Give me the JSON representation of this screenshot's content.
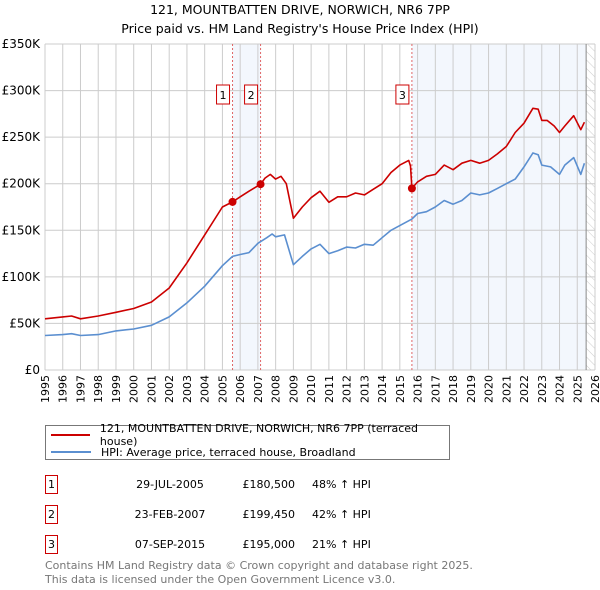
{
  "header": {
    "title": "121, MOUNTBATTEN DRIVE, NORWICH, NR6 7PP",
    "subtitle": "Price paid vs. HM Land Registry's House Price Index (HPI)"
  },
  "chart_data": {
    "type": "line",
    "title": "121, MOUNTBATTEN DRIVE, NORWICH, NR6 7PP — Price paid vs. HM Land Registry's House Price Index (HPI)",
    "xlim": [
      1995,
      2026
    ],
    "ylim": [
      0,
      350000
    ],
    "x_ticks": [
      "1995",
      "1996",
      "1997",
      "1998",
      "1999",
      "2000",
      "2001",
      "2002",
      "2003",
      "2004",
      "2005",
      "2006",
      "2007",
      "2008",
      "2009",
      "2010",
      "2011",
      "2012",
      "2013",
      "2014",
      "2015",
      "2016",
      "2017",
      "2018",
      "2019",
      "2020",
      "2021",
      "2022",
      "2023",
      "2024",
      "2025",
      "2026"
    ],
    "y_ticks": [
      {
        "v": 0,
        "label": "£0"
      },
      {
        "v": 50000,
        "label": "£50K"
      },
      {
        "v": 100000,
        "label": "£100K"
      },
      {
        "v": 150000,
        "label": "£150K"
      },
      {
        "v": 200000,
        "label": "£200K"
      },
      {
        "v": 250000,
        "label": "£250K"
      },
      {
        "v": 300000,
        "label": "£300K"
      },
      {
        "v": 350000,
        "label": "£350K"
      }
    ],
    "grid": true,
    "shaded_ranges": [
      [
        2005.57,
        2007.15
      ],
      [
        2015.68,
        2025.5
      ]
    ],
    "hatched_from": 2025.5,
    "series": [
      {
        "name": "121, MOUNTBATTEN DRIVE, NORWICH, NR6 7PP (terraced house)",
        "color": "#cc0000",
        "x": [
          1995,
          1996,
          1996.5,
          1997,
          1998,
          1999,
          2000,
          2001,
          2002,
          2003,
          2004,
          2005,
          2005.57,
          2006,
          2006.5,
          2007.15,
          2007.4,
          2007.7,
          2008,
          2008.3,
          2008.6,
          2009,
          2009.5,
          2010,
          2010.5,
          2011,
          2011.5,
          2012,
          2012.5,
          2013,
          2013.5,
          2014,
          2014.5,
          2015,
          2015.5,
          2015.6,
          2015.68,
          2016,
          2016.5,
          2017,
          2017.5,
          2018,
          2018.5,
          2019,
          2019.5,
          2020,
          2020.5,
          2021,
          2021.5,
          2022,
          2022.5,
          2022.8,
          2023,
          2023.3,
          2023.7,
          2024,
          2024.3,
          2024.8,
          2025.2,
          2025.4
        ],
        "y": [
          55000,
          57000,
          58000,
          55000,
          58000,
          62000,
          66000,
          73000,
          88000,
          115000,
          145000,
          175000,
          180500,
          186000,
          192000,
          199450,
          206000,
          210000,
          205000,
          208000,
          200000,
          163000,
          175000,
          185000,
          192000,
          180000,
          186000,
          186000,
          190000,
          188000,
          194000,
          200000,
          212000,
          220000,
          225000,
          219000,
          195000,
          202000,
          208000,
          210000,
          220000,
          215000,
          222000,
          225000,
          222000,
          225000,
          232000,
          240000,
          255000,
          265000,
          281000,
          280000,
          268000,
          268000,
          262000,
          255000,
          262000,
          273000,
          258000,
          266000
        ]
      },
      {
        "name": "HPI: Average price, terraced house, Broadland",
        "color": "#5b8fd0",
        "x": [
          1995,
          1996,
          1996.5,
          1997,
          1998,
          1999,
          2000,
          2001,
          2002,
          2003,
          2004,
          2005,
          2005.57,
          2006,
          2006.5,
          2007,
          2007.5,
          2007.8,
          2008,
          2008.5,
          2009,
          2009.5,
          2010,
          2010.5,
          2011,
          2011.5,
          2012,
          2012.5,
          2013,
          2013.5,
          2014,
          2014.5,
          2015,
          2015.68,
          2016,
          2016.5,
          2017,
          2017.5,
          2018,
          2018.5,
          2019,
          2019.5,
          2020,
          2020.5,
          2021,
          2021.5,
          2022,
          2022.5,
          2022.8,
          2023,
          2023.5,
          2024,
          2024.3,
          2024.8,
          2025.2,
          2025.4
        ],
        "y": [
          37000,
          38000,
          39000,
          37000,
          38000,
          42000,
          44000,
          48000,
          57000,
          72000,
          90000,
          112000,
          122000,
          124000,
          126000,
          136000,
          142000,
          146000,
          143000,
          145000,
          113000,
          122000,
          130000,
          135000,
          125000,
          128000,
          132000,
          131000,
          135000,
          134000,
          142000,
          150000,
          155000,
          162000,
          168000,
          170000,
          175000,
          182000,
          178000,
          182000,
          190000,
          188000,
          190000,
          195000,
          200000,
          205000,
          218000,
          233000,
          231000,
          220000,
          218000,
          210000,
          220000,
          228000,
          210000,
          222000
        ]
      }
    ],
    "sales": [
      {
        "id": "1",
        "date": "29-JUL-2005",
        "x": 2005.57,
        "price": 180500,
        "price_label": "£180,500",
        "pct": "48% ↑ HPI"
      },
      {
        "id": "2",
        "date": "23-FEB-2007",
        "x": 2007.15,
        "price": 199450,
        "price_label": "£199,450",
        "pct": "42% ↑ HPI"
      },
      {
        "id": "3",
        "date": "07-SEP-2015",
        "x": 2015.68,
        "price": 195000,
        "price_label": "£195,000",
        "pct": "21% ↑ HPI"
      }
    ]
  },
  "footer": {
    "line1": "Contains HM Land Registry data © Crown copyright and database right 2025.",
    "line2": "This data is licensed under the Open Government Licence v3.0."
  }
}
